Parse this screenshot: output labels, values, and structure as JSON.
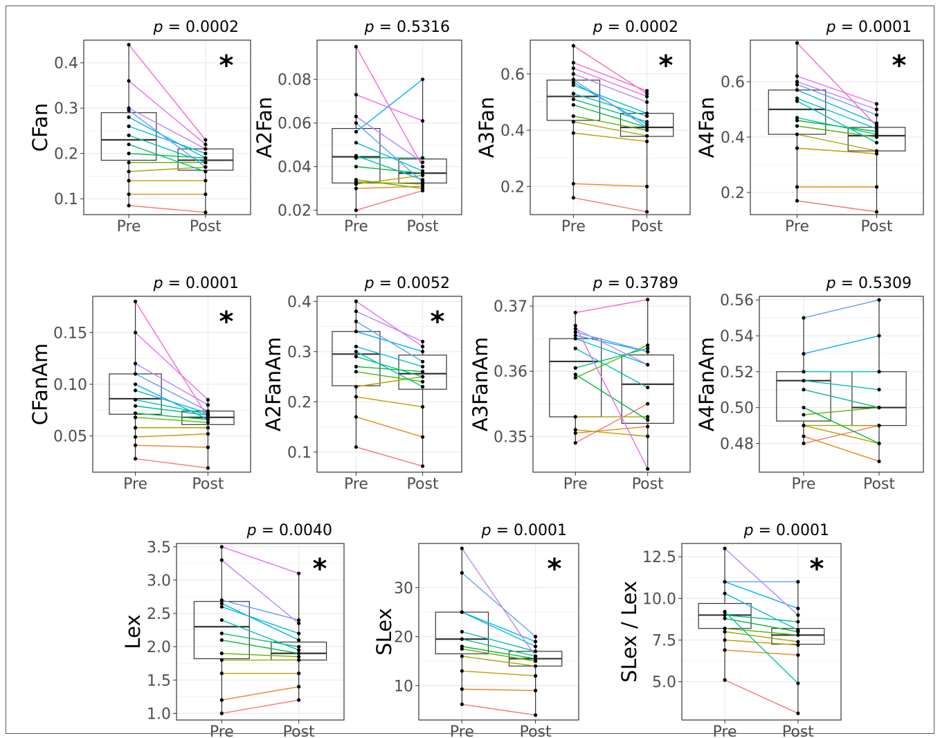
{
  "colors": {
    "subjects": [
      "#F8766D",
      "#E7861B",
      "#C39B00",
      "#A3A500",
      "#5BB300",
      "#00BA38",
      "#00BF7D",
      "#00C0AF",
      "#00BCD8",
      "#00B0F6",
      "#619CFF",
      "#B983FF",
      "#E76BF3",
      "#FD61D1",
      "#FF67A4"
    ],
    "box": "#333333",
    "grid": "#ebebeb",
    "point": "#000000"
  },
  "chart_data": [
    {
      "type": "box",
      "ylabel": "CFan",
      "p_prefix": "p",
      "p_value": "= 0.0002",
      "significant": "*",
      "categories": [
        "Pre",
        "Post"
      ],
      "ylim": [
        0.065,
        0.45
      ],
      "yticks": [
        0.1,
        0.2,
        0.3,
        0.4
      ],
      "yticklabels": [
        "0.1",
        "0.2",
        "0.3",
        "0.4"
      ],
      "pre": [
        0.085,
        0.11,
        0.14,
        0.16,
        0.18,
        0.2,
        0.22,
        0.24,
        0.26,
        0.28,
        0.295,
        0.3,
        0.36,
        0.44
      ],
      "post": [
        0.07,
        0.11,
        0.14,
        0.17,
        0.18,
        0.19,
        0.16,
        0.18,
        0.2,
        0.19,
        0.17,
        0.21,
        0.22,
        0.23
      ],
      "box_pre": [
        0.185,
        0.23,
        0.29
      ],
      "box_post": [
        0.163,
        0.185,
        0.21
      ],
      "whisk_pre": [
        0.085,
        0.44
      ],
      "whisk_post": [
        0.07,
        0.23
      ]
    },
    {
      "type": "box",
      "ylabel": "A2Fan",
      "p_prefix": "p",
      "p_value": "= 0.5316",
      "significant": "",
      "categories": [
        "Pre",
        "Post"
      ],
      "ylim": [
        0.018,
        0.098
      ],
      "yticks": [
        0.02,
        0.04,
        0.06,
        0.08
      ],
      "yticklabels": [
        "0.02",
        "0.04",
        "0.06",
        "0.08"
      ],
      "pre": [
        0.02,
        0.03,
        0.032,
        0.033,
        0.034,
        0.04,
        0.044,
        0.045,
        0.051,
        0.056,
        0.06,
        0.063,
        0.073,
        0.095
      ],
      "post": [
        0.029,
        0.031,
        0.036,
        0.032,
        0.03,
        0.037,
        0.044,
        0.034,
        0.038,
        0.08,
        0.033,
        0.042,
        0.061,
        0.04
      ],
      "box_pre": [
        0.0325,
        0.0445,
        0.0575
      ],
      "box_post": [
        0.0325,
        0.037,
        0.0435
      ],
      "whisk_pre": [
        0.02,
        0.095
      ],
      "whisk_post": [
        0.029,
        0.08
      ]
    },
    {
      "type": "box",
      "ylabel": "A3Fan",
      "p_prefix": "p",
      "p_value": "= 0.0002",
      "significant": "*",
      "categories": [
        "Pre",
        "Post"
      ],
      "ylim": [
        0.1,
        0.72
      ],
      "yticks": [
        0.2,
        0.4,
        0.6
      ],
      "yticklabels": [
        "0.2",
        "0.4",
        "0.6"
      ],
      "pre": [
        0.16,
        0.21,
        0.39,
        0.43,
        0.45,
        0.49,
        0.51,
        0.53,
        0.56,
        0.57,
        0.58,
        0.6,
        0.62,
        0.64,
        0.7
      ],
      "post": [
        0.11,
        0.2,
        0.36,
        0.38,
        0.4,
        0.41,
        0.43,
        0.45,
        0.46,
        0.42,
        0.41,
        0.5,
        0.52,
        0.54,
        0.53
      ],
      "box_pre": [
        0.435,
        0.52,
        0.578
      ],
      "box_post": [
        0.378,
        0.41,
        0.46
      ],
      "whisk_pre": [
        0.16,
        0.7
      ],
      "whisk_post": [
        0.11,
        0.54
      ]
    },
    {
      "type": "box",
      "ylabel": "A4Fan",
      "p_prefix": "p",
      "p_value": "= 0.0001",
      "significant": "*",
      "categories": [
        "Pre",
        "Post"
      ],
      "ylim": [
        0.12,
        0.75
      ],
      "yticks": [
        0.2,
        0.4,
        0.6
      ],
      "yticklabels": [
        "0.2",
        "0.4",
        "0.6"
      ],
      "pre": [
        0.17,
        0.22,
        0.36,
        0.41,
        0.44,
        0.46,
        0.47,
        0.53,
        0.54,
        0.57,
        0.59,
        0.6,
        0.62,
        0.74
      ],
      "post": [
        0.13,
        0.22,
        0.34,
        0.35,
        0.4,
        0.42,
        0.41,
        0.38,
        0.43,
        0.45,
        0.48,
        0.5,
        0.52,
        0.44
      ],
      "box_pre": [
        0.41,
        0.5,
        0.57
      ],
      "box_post": [
        0.35,
        0.405,
        0.435
      ],
      "whisk_pre": [
        0.17,
        0.74
      ],
      "whisk_post": [
        0.13,
        0.52
      ]
    },
    {
      "type": "box",
      "ylabel": "CFanAm",
      "p_prefix": "p",
      "p_value": "= 0.0001",
      "significant": "*",
      "categories": [
        "Pre",
        "Post"
      ],
      "ylim": [
        0.015,
        0.185
      ],
      "yticks": [
        0.05,
        0.1,
        0.15
      ],
      "yticklabels": [
        "0.05",
        "0.10",
        "0.15"
      ],
      "pre": [
        0.028,
        0.041,
        0.049,
        0.058,
        0.068,
        0.072,
        0.079,
        0.085,
        0.094,
        0.1,
        0.11,
        0.12,
        0.15,
        0.18
      ],
      "post": [
        0.019,
        0.039,
        0.052,
        0.058,
        0.063,
        0.066,
        0.07,
        0.071,
        0.072,
        0.066,
        0.074,
        0.08,
        0.085,
        0.068
      ],
      "box_pre": [
        0.071,
        0.086,
        0.11
      ],
      "box_post": [
        0.061,
        0.068,
        0.074
      ],
      "whisk_pre": [
        0.028,
        0.18
      ],
      "whisk_post": [
        0.019,
        0.085
      ]
    },
    {
      "type": "box",
      "ylabel": "A2FanAm",
      "p_prefix": "p",
      "p_value": "= 0.0052",
      "significant": "*",
      "categories": [
        "Pre",
        "Post"
      ],
      "ylim": [
        0.06,
        0.41
      ],
      "yticks": [
        0.1,
        0.2,
        0.3,
        0.4
      ],
      "yticklabels": [
        "0.1",
        "0.2",
        "0.3",
        "0.4"
      ],
      "pre": [
        0.11,
        0.17,
        0.21,
        0.23,
        0.26,
        0.27,
        0.29,
        0.3,
        0.31,
        0.34,
        0.36,
        0.38,
        0.4
      ],
      "post": [
        0.072,
        0.13,
        0.19,
        0.25,
        0.24,
        0.26,
        0.25,
        0.23,
        0.27,
        0.3,
        0.28,
        0.32,
        0.31
      ],
      "box_pre": [
        0.232,
        0.295,
        0.34
      ],
      "box_post": [
        0.225,
        0.256,
        0.293
      ],
      "whisk_pre": [
        0.11,
        0.4
      ],
      "whisk_post": [
        0.072,
        0.32
      ]
    },
    {
      "type": "box",
      "ylabel": "A3FanAm",
      "p_prefix": "p",
      "p_value": "= 0.3789",
      "significant": "",
      "categories": [
        "Pre",
        "Post"
      ],
      "ylim": [
        0.3445,
        0.3715
      ],
      "yticks": [
        0.35,
        0.36,
        0.37
      ],
      "yticklabels": [
        "0.35",
        "0.36",
        "0.37"
      ],
      "pre": [
        0.349,
        0.3505,
        0.351,
        0.353,
        0.359,
        0.3595,
        0.3605,
        0.3635,
        0.365,
        0.3655,
        0.366,
        0.3665,
        0.367,
        0.369
      ],
      "post": [
        0.355,
        0.3515,
        0.35,
        0.353,
        0.364,
        0.3525,
        0.3635,
        0.3575,
        0.361,
        0.363,
        0.363,
        0.361,
        0.345,
        0.371
      ],
      "box_pre": [
        0.353,
        0.3615,
        0.365
      ],
      "box_post": [
        0.352,
        0.358,
        0.3625
      ],
      "whisk_pre": [
        0.349,
        0.369
      ],
      "whisk_post": [
        0.345,
        0.371
      ]
    },
    {
      "type": "box",
      "ylabel": "A4FanAm",
      "p_prefix": "p",
      "p_value": "= 0.5309",
      "significant": "",
      "categories": [
        "Pre",
        "Post"
      ],
      "ylim": [
        0.464,
        0.562
      ],
      "yticks": [
        0.48,
        0.5,
        0.52,
        0.54,
        0.56
      ],
      "yticklabels": [
        "0.48",
        "0.50",
        "0.52",
        "0.54",
        "0.56"
      ],
      "pre": [
        0.48,
        0.484,
        0.49,
        0.49,
        0.496,
        0.5,
        0.51,
        0.515,
        0.52,
        0.53,
        0.55
      ],
      "post": [
        0.49,
        0.47,
        0.48,
        0.49,
        0.5,
        0.48,
        0.5,
        0.51,
        0.52,
        0.54,
        0.56
      ],
      "box_pre": [
        0.4925,
        0.515,
        0.52
      ],
      "box_post": [
        0.49,
        0.5,
        0.52
      ],
      "whisk_pre": [
        0.48,
        0.55
      ],
      "whisk_post": [
        0.47,
        0.56
      ]
    },
    {
      "type": "box",
      "ylabel": "Lex",
      "p_prefix": "p",
      "p_value": "= 0.0040",
      "significant": "*",
      "categories": [
        "Pre",
        "Post"
      ],
      "ylim": [
        0.9,
        3.55
      ],
      "yticks": [
        1.0,
        1.5,
        2.0,
        2.5,
        3.0,
        3.5
      ],
      "yticklabels": [
        "1.0",
        "1.5",
        "2.0",
        "2.5",
        "3.0",
        "3.5"
      ],
      "pre": [
        1.0,
        1.2,
        1.6,
        1.8,
        1.9,
        2.1,
        2.2,
        2.4,
        2.6,
        2.65,
        2.7,
        3.3,
        3.5
      ],
      "post": [
        1.2,
        1.4,
        1.6,
        1.8,
        1.85,
        1.9,
        2.0,
        1.95,
        2.2,
        2.1,
        2.4,
        2.35,
        3.1
      ],
      "box_pre": [
        1.82,
        2.3,
        2.68
      ],
      "box_post": [
        1.8,
        1.9,
        2.07
      ],
      "whisk_pre": [
        1.0,
        3.5
      ],
      "whisk_post": [
        1.2,
        3.1
      ]
    },
    {
      "type": "box",
      "ylabel": "SLex",
      "p_prefix": "p",
      "p_value": "= 0.0001",
      "significant": "*",
      "categories": [
        "Pre",
        "Post"
      ],
      "ylim": [
        3,
        39
      ],
      "yticks": [
        10,
        20,
        30
      ],
      "yticklabels": [
        "10",
        "20",
        "30"
      ],
      "pre": [
        6.2,
        9.3,
        13,
        16,
        17.5,
        18,
        19.5,
        21,
        25,
        25,
        33,
        38
      ],
      "post": [
        4,
        9,
        12,
        14,
        15,
        15.5,
        16,
        17,
        18,
        19,
        20,
        16
      ],
      "box_pre": [
        16.5,
        19.5,
        25
      ],
      "box_post": [
        14,
        15.5,
        17
      ],
      "whisk_pre": [
        6.2,
        38
      ],
      "whisk_post": [
        4,
        20
      ]
    },
    {
      "type": "box",
      "ylabel": "SLex / Lex",
      "p_prefix": "p",
      "p_value": "= 0.0001",
      "significant": "*",
      "categories": [
        "Pre",
        "Post"
      ],
      "ylim": [
        2.7,
        13.3
      ],
      "yticks": [
        5.0,
        7.5,
        10.0,
        12.5
      ],
      "yticklabels": [
        "5.0",
        "7.5",
        "10.0",
        "12.5"
      ],
      "pre": [
        5.1,
        6.9,
        7.5,
        8.0,
        8.2,
        8.8,
        9.0,
        9.2,
        10.3,
        11,
        11,
        13
      ],
      "post": [
        3.1,
        6.6,
        7.2,
        7.4,
        7.8,
        8.0,
        8.6,
        4.9,
        8.1,
        9.4,
        11,
        9.0
      ],
      "box_pre": [
        8.2,
        9.0,
        9.7
      ],
      "box_post": [
        7.25,
        7.8,
        8.2
      ],
      "whisk_pre": [
        5.1,
        13
      ],
      "whisk_post": [
        3.1,
        11
      ]
    }
  ]
}
